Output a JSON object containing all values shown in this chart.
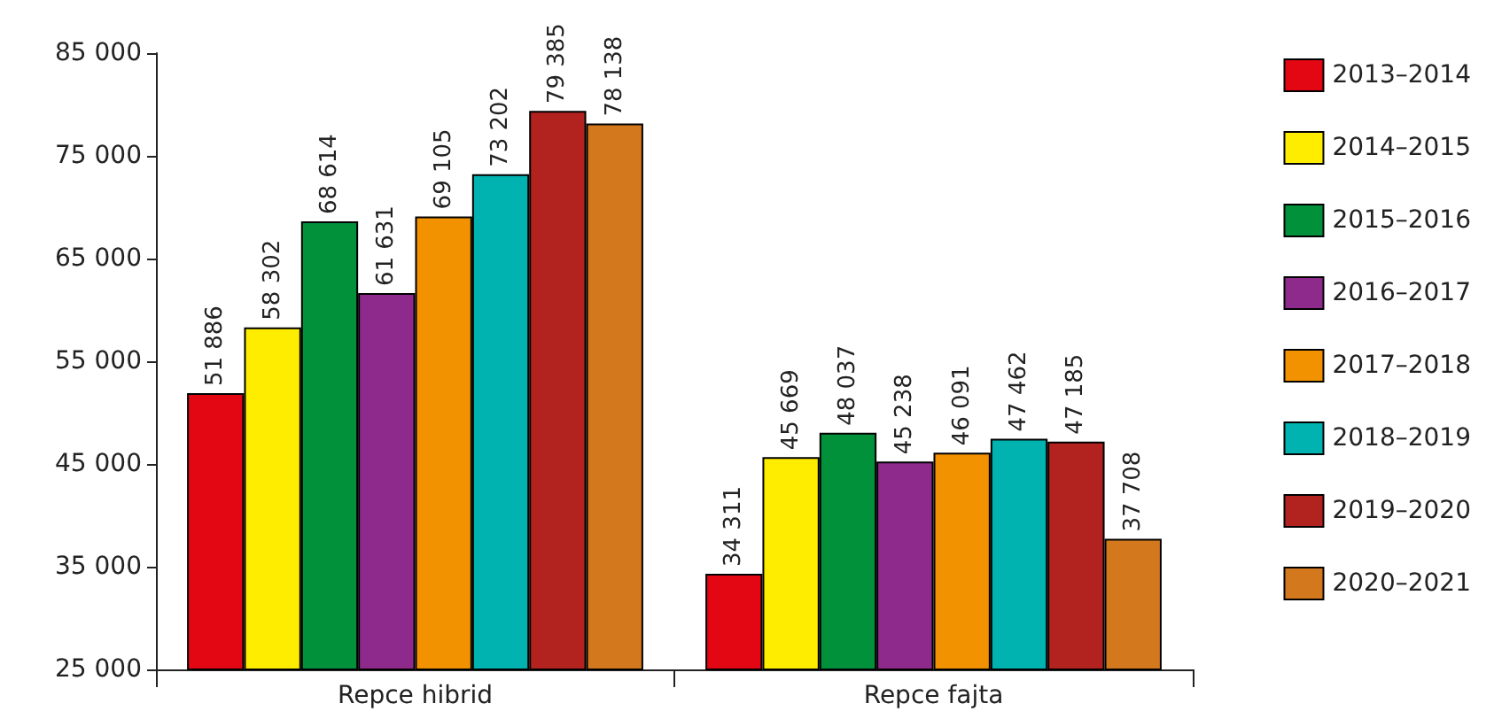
{
  "chart_data": {
    "type": "bar",
    "categories": [
      "Repce hibrid",
      "Repce fajta"
    ],
    "series": [
      {
        "name": "2013–2014",
        "color": "#e30613",
        "values": [
          51886,
          34311
        ]
      },
      {
        "name": "2014–2015",
        "color": "#ffed00",
        "values": [
          58302,
          45669
        ]
      },
      {
        "name": "2015–2016",
        "color": "#00913a",
        "values": [
          68614,
          48037
        ]
      },
      {
        "name": "2016–2017",
        "color": "#8e2a8c",
        "values": [
          61631,
          45238
        ]
      },
      {
        "name": "2017–2018",
        "color": "#f39200",
        "values": [
          69105,
          46091
        ]
      },
      {
        "name": "2018–2019",
        "color": "#00b2b0",
        "values": [
          73202,
          47462
        ]
      },
      {
        "name": "2019–2020",
        "color": "#b2231f",
        "values": [
          79385,
          47185
        ]
      },
      {
        "name": "2020–2021",
        "color": "#d4781d",
        "values": [
          78138,
          37708
        ]
      }
    ],
    "ylim": [
      25000,
      85000
    ],
    "yticks": [
      25000,
      35000,
      45000,
      55000,
      65000,
      75000,
      85000
    ],
    "grid": false,
    "legend": "right",
    "data_labels": true
  }
}
